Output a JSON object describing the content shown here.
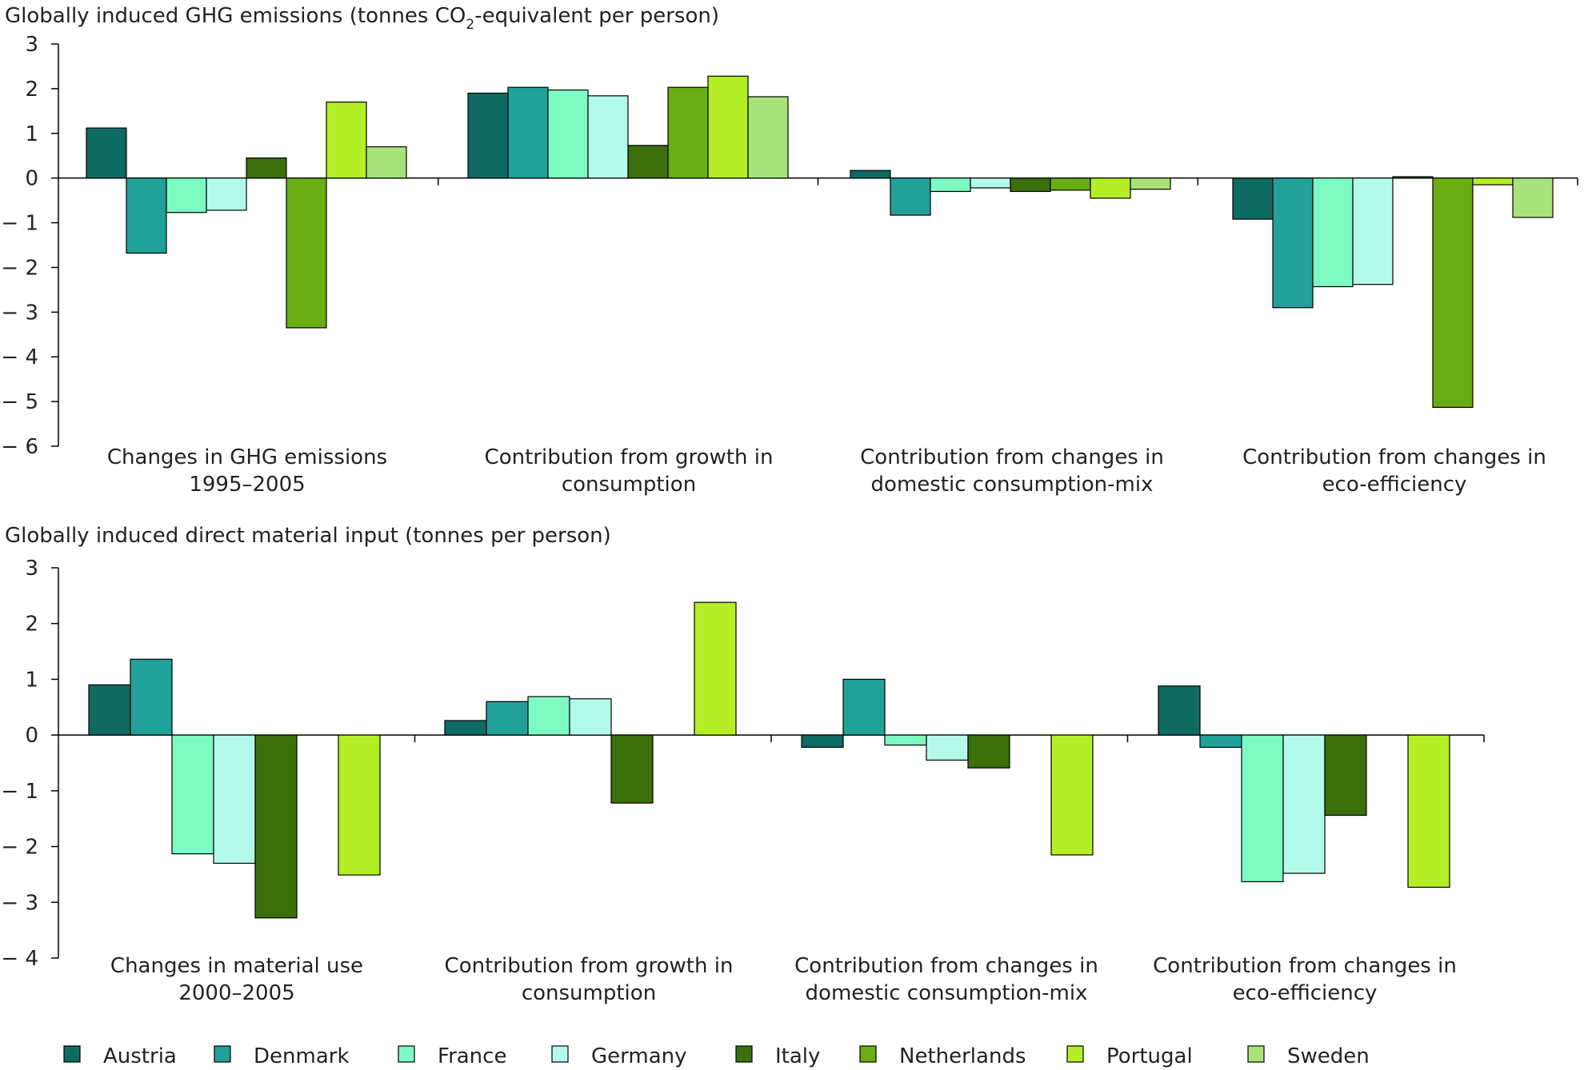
{
  "chart_data": [
    {
      "type": "bar",
      "title_main": "Globally induced GHG emissions (tonnes CO",
      "title_sub": "2",
      "title_rest": "-equivalent per person)",
      "ylim": [
        -6,
        3
      ],
      "yticks": [
        "3",
        "2",
        "1",
        "0",
        "− 1",
        "− 2",
        "− 3",
        "− 4",
        "− 5",
        "− 6"
      ],
      "categories": [
        [
          "Changes in GHG emissions",
          "1995–2005"
        ],
        [
          "Contribution from growth in",
          "consumption"
        ],
        [
          "Contribution from changes in",
          "domestic consumption-mix"
        ],
        [
          "Contribution from changes in",
          "eco-efficiency"
        ]
      ],
      "series": [
        {
          "name": "Austria",
          "values": [
            1.12,
            1.9,
            0.17,
            -0.92
          ]
        },
        {
          "name": "Denmark",
          "values": [
            -1.68,
            2.03,
            -0.83,
            -2.9
          ]
        },
        {
          "name": "France",
          "values": [
            -0.77,
            1.97,
            -0.3,
            -2.43
          ]
        },
        {
          "name": "Germany",
          "values": [
            -0.72,
            1.84,
            -0.22,
            -2.38
          ]
        },
        {
          "name": "Italy",
          "values": [
            0.45,
            0.73,
            -0.3,
            0.03
          ]
        },
        {
          "name": "Netherlands",
          "values": [
            -3.35,
            2.03,
            -0.27,
            -5.13
          ]
        },
        {
          "name": "Portugal",
          "values": [
            1.7,
            2.28,
            -0.45,
            -0.15
          ]
        },
        {
          "name": "Sweden",
          "values": [
            0.7,
            1.82,
            -0.25,
            -0.88
          ]
        }
      ]
    },
    {
      "type": "bar",
      "title_main": "Globally induced direct material input (tonnes per person)",
      "ylim": [
        -4,
        3
      ],
      "yticks": [
        "3",
        "2",
        "1",
        "0",
        "− 1",
        "− 2",
        "− 3",
        "− 4"
      ],
      "categories": [
        [
          "Changes in material use",
          "2000–2005"
        ],
        [
          "Contribution from growth in",
          "consumption"
        ],
        [
          "Contribution from changes in",
          "domestic consumption-mix"
        ],
        [
          "Contribution from changes in",
          "eco-efficiency"
        ]
      ],
      "series": [
        {
          "name": "Austria",
          "values": [
            0.9,
            0.26,
            -0.22,
            0.88
          ]
        },
        {
          "name": "Denmark",
          "values": [
            1.36,
            0.6,
            1.0,
            -0.22
          ]
        },
        {
          "name": "France",
          "values": [
            -2.13,
            0.69,
            -0.18,
            -2.63
          ]
        },
        {
          "name": "Germany",
          "values": [
            -2.3,
            0.65,
            -0.45,
            -2.48
          ]
        },
        {
          "name": "Italy",
          "values": [
            -3.28,
            -1.22,
            -0.59,
            -1.44
          ]
        },
        {
          "name": "Netherlands",
          "values": [
            null,
            null,
            null,
            null
          ]
        },
        {
          "name": "Portugal",
          "values": [
            -2.51,
            2.38,
            -2.15,
            -2.73
          ]
        },
        {
          "name": "Sweden",
          "values": [
            null,
            null,
            null,
            null
          ]
        }
      ]
    }
  ],
  "legend": [
    {
      "name": "Austria",
      "color": "#0f6a62"
    },
    {
      "name": "Denmark",
      "color": "#22a09a"
    },
    {
      "name": "France",
      "color": "#7dfac2"
    },
    {
      "name": "Germany",
      "color": "#b4faea"
    },
    {
      "name": "Italy",
      "color": "#3a6f0c"
    },
    {
      "name": "Netherlands",
      "color": "#68ad14"
    },
    {
      "name": "Portugal",
      "color": "#b4ee26"
    },
    {
      "name": "Sweden",
      "color": "#a8e27a"
    }
  ]
}
